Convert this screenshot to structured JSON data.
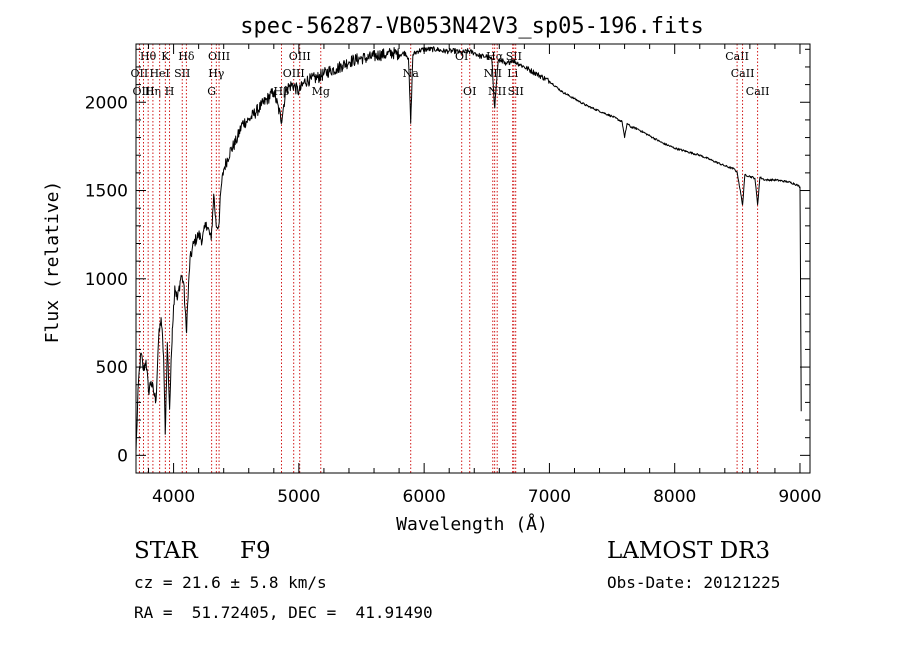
{
  "chart_data": {
    "type": "line",
    "title": "spec-56287-VB053N42V3_sp05-196.fits",
    "xlabel": "Wavelength (Å)",
    "ylabel": "Flux (relative)",
    "xlim": [
      3700,
      9080
    ],
    "ylim": [
      -100,
      2330
    ],
    "xticks": [
      4000,
      5000,
      6000,
      7000,
      8000,
      9000
    ],
    "yticks": [
      0,
      500,
      1000,
      1500,
      2000
    ],
    "xtick_labels": [
      "4000",
      "5000",
      "6000",
      "7000",
      "8000",
      "9000"
    ],
    "ytick_labels": [
      "0",
      "500",
      "1000",
      "1500",
      "2000"
    ],
    "x_minor_step": 200,
    "y_minor_step": 100,
    "grid": false,
    "series": [
      {
        "name": "spectrum",
        "x": [
          3700,
          3720,
          3740,
          3760,
          3780,
          3800,
          3820,
          3840,
          3860,
          3880,
          3900,
          3920,
          3933,
          3950,
          3968,
          3990,
          4010,
          4030,
          4060,
          4080,
          4102,
          4130,
          4160,
          4200,
          4230,
          4260,
          4300,
          4320,
          4340,
          4360,
          4380,
          4400,
          4450,
          4500,
          4550,
          4600,
          4650,
          4700,
          4750,
          4800,
          4861,
          4900,
          4950,
          5000,
          5050,
          5100,
          5150,
          5200,
          5250,
          5300,
          5350,
          5400,
          5450,
          5500,
          5550,
          5600,
          5650,
          5700,
          5750,
          5800,
          5850,
          5875,
          5893,
          5910,
          5950,
          6000,
          6050,
          6100,
          6150,
          6200,
          6250,
          6300,
          6350,
          6400,
          6450,
          6500,
          6540,
          6563,
          6590,
          6620,
          6650,
          6700,
          6750,
          6800,
          6850,
          6900,
          7000,
          7100,
          7200,
          7300,
          7400,
          7500,
          7580,
          7600,
          7620,
          7650,
          7700,
          7800,
          7900,
          8000,
          8100,
          8200,
          8300,
          8400,
          8480,
          8500,
          8542,
          8560,
          8600,
          8640,
          8662,
          8680,
          8720,
          8800,
          8900,
          8950,
          8980,
          9000,
          9010
        ],
        "y": [
          20,
          420,
          580,
          480,
          540,
          360,
          420,
          360,
          310,
          660,
          780,
          560,
          120,
          640,
          260,
          720,
          960,
          880,
          1020,
          980,
          700,
          1100,
          1200,
          1250,
          1220,
          1320,
          1220,
          1480,
          1300,
          1300,
          1520,
          1620,
          1720,
          1780,
          1880,
          1900,
          1940,
          1980,
          2020,
          2060,
          1900,
          2080,
          2100,
          2060,
          2120,
          2130,
          2140,
          2160,
          2180,
          2190,
          2210,
          2230,
          2240,
          2250,
          2250,
          2260,
          2270,
          2270,
          2280,
          2270,
          2280,
          2250,
          1880,
          2270,
          2290,
          2300,
          2300,
          2300,
          2290,
          2290,
          2290,
          2280,
          2290,
          2280,
          2260,
          2260,
          2240,
          1970,
          2230,
          2240,
          2210,
          2240,
          2220,
          2200,
          2180,
          2160,
          2120,
          2060,
          2020,
          1980,
          1950,
          1920,
          1890,
          1800,
          1880,
          1860,
          1850,
          1810,
          1770,
          1740,
          1720,
          1700,
          1670,
          1640,
          1620,
          1600,
          1420,
          1590,
          1580,
          1570,
          1420,
          1575,
          1560,
          1560,
          1550,
          1540,
          1530,
          1520,
          250
        ]
      }
    ],
    "lines": [
      {
        "name": "Hθ",
        "x": 3797,
        "row": 0
      },
      {
        "name": "OII",
        "x": 3727,
        "row": 1
      },
      {
        "name": "OIII",
        "x": 3760,
        "row": 2
      },
      {
        "name": "Hη",
        "x": 3835,
        "row": 2
      },
      {
        "name": "HeI",
        "x": 3889,
        "row": 1
      },
      {
        "name": "K",
        "x": 3934,
        "row": 0
      },
      {
        "name": "H",
        "x": 3968,
        "row": 2
      },
      {
        "name": "SII",
        "x": 4069,
        "row": 1
      },
      {
        "name": "Hδ",
        "x": 4102,
        "row": 0
      },
      {
        "name": "G",
        "x": 4304,
        "row": 2
      },
      {
        "name": "Hγ",
        "x": 4341,
        "row": 1
      },
      {
        "name": "OIII",
        "x": 4363,
        "row": 0
      },
      {
        "name": "Hβ",
        "x": 4861,
        "row": 2
      },
      {
        "name": "OIII",
        "x": 4959,
        "row": 1
      },
      {
        "name": "OIII",
        "x": 5007,
        "row": 0
      },
      {
        "name": "Mg",
        "x": 5175,
        "row": 2
      },
      {
        "name": "Na",
        "x": 5893,
        "row": 1
      },
      {
        "name": "OI",
        "x": 6300,
        "row": 0
      },
      {
        "name": "OI",
        "x": 6364,
        "row": 2
      },
      {
        "name": "NII",
        "x": 6548,
        "row": 1
      },
      {
        "name": "Hα",
        "x": 6563,
        "row": 0
      },
      {
        "name": "NII",
        "x": 6583,
        "row": 2
      },
      {
        "name": "Li",
        "x": 6707,
        "row": 1
      },
      {
        "name": "SII",
        "x": 6716,
        "row": 0
      },
      {
        "name": "SII",
        "x": 6731,
        "row": 2
      },
      {
        "name": "CaII",
        "x": 8498,
        "row": 0
      },
      {
        "name": "CaII",
        "x": 8542,
        "row": 1
      },
      {
        "name": "CaII",
        "x": 8662,
        "row": 2
      }
    ]
  },
  "info": {
    "class": "STAR",
    "subclass": "F9",
    "survey": "LAMOST DR3",
    "cz": "cz = 21.6 ± 5.8 km/s",
    "obs_date": "Obs-Date: 20121225",
    "radec": "RA =  51.72405, DEC =  41.91490"
  },
  "colors": {
    "spectrum": "#000000",
    "line_markers": "#cc0000",
    "axes": "#000000"
  }
}
